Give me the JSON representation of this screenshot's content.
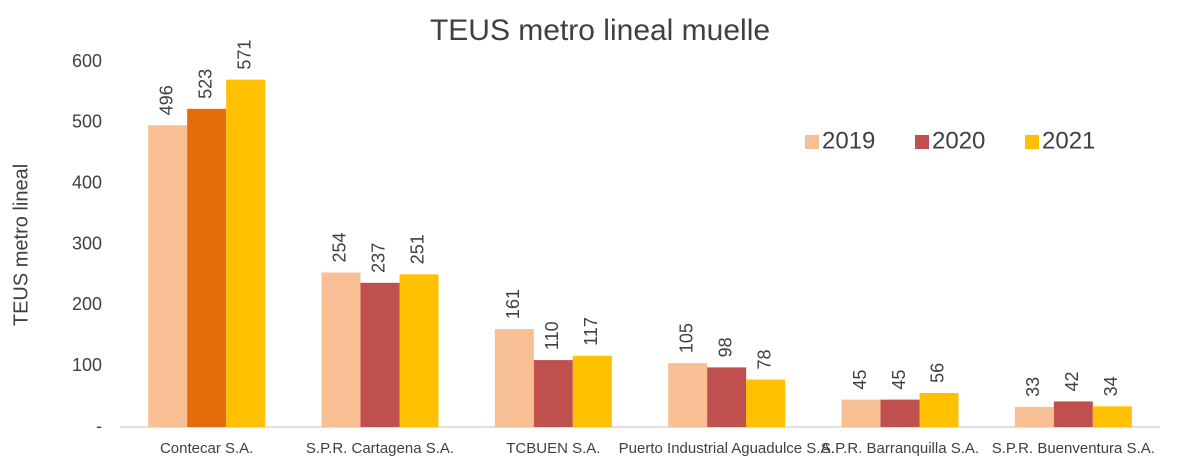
{
  "chart_data": {
    "type": "bar",
    "title": "TEUS metro lineal muelle",
    "y_label": "TEUS metro lineal",
    "categories": [
      "Contecar S.A.",
      "S.P.R. Cartagena S.A.",
      "TCBUEN S.A.",
      "Puerto Industrial Aguadulce S.A.",
      "S.P.R. Barranquilla S.A.",
      "S.P.R. Buenventura S.A."
    ],
    "series": [
      {
        "name": "2019",
        "color": "#f8bf94",
        "values": [
          496,
          254,
          161,
          105,
          45,
          33
        ]
      },
      {
        "name": "2020",
        "color": "#c0504d",
        "point_colors": [
          "#e46c0a",
          "#c0504d",
          "#c0504d",
          "#c0504d",
          "#c0504d",
          "#c0504d"
        ],
        "values": [
          523,
          237,
          110,
          98,
          45,
          42
        ]
      },
      {
        "name": "2021",
        "color": "#ffc000",
        "values": [
          571,
          251,
          117,
          78,
          56,
          34
        ]
      }
    ],
    "ylim": [
      0,
      600
    ],
    "yticks": [
      {
        "value": 0,
        "label": "-"
      },
      100,
      200,
      300,
      400,
      500,
      600
    ],
    "grid": false,
    "legend": "upper right"
  }
}
